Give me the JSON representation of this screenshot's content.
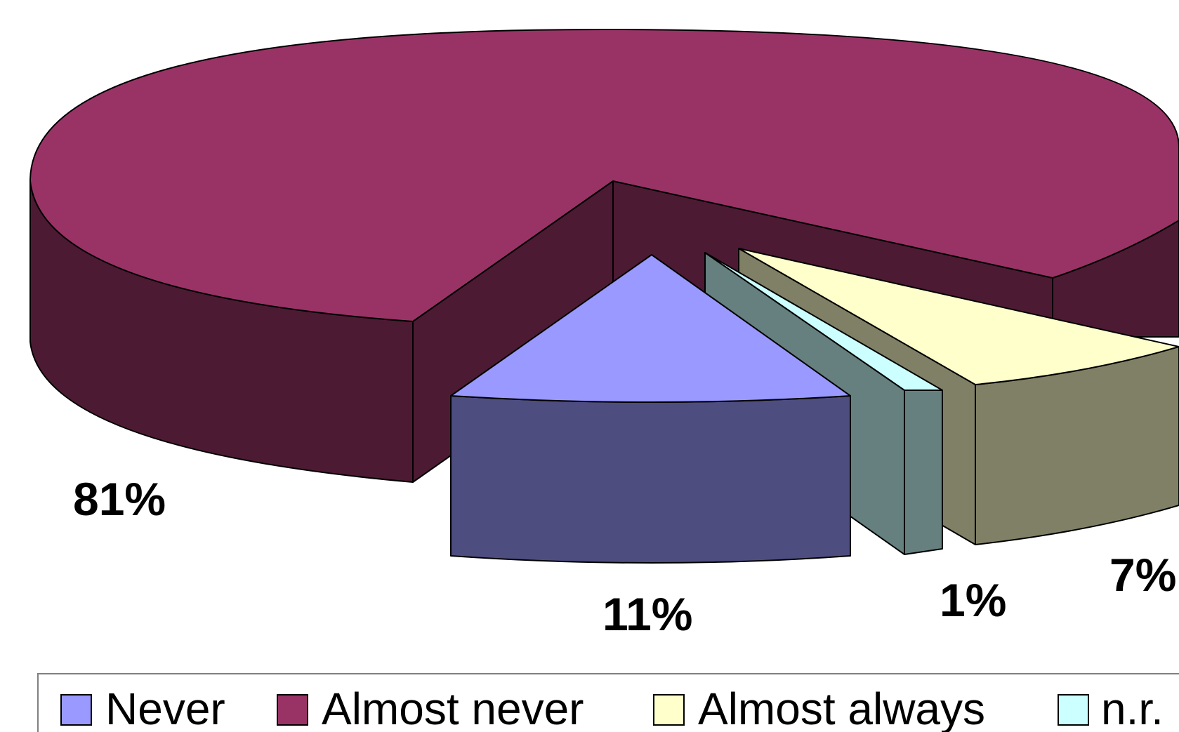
{
  "chart_data": {
    "type": "pie",
    "three_d": true,
    "exploded_slices": [
      "Never",
      "n.r.",
      "Almost always"
    ],
    "slices": [
      {
        "name": "Never",
        "value": 11,
        "label": "11%",
        "top_color": "#9999ff",
        "side_color": "#4d4d80"
      },
      {
        "name": "Almost never",
        "value": 81,
        "label": "81%",
        "top_color": "#993366",
        "side_color": "#4d1a33"
      },
      {
        "name": "Almost always",
        "value": 7,
        "label": "7%",
        "top_color": "#ffffcc",
        "side_color": "#808066"
      },
      {
        "name": "n.r.",
        "value": 1,
        "label": "1%",
        "top_color": "#ccffff",
        "side_color": "#668080"
      }
    ],
    "legend": {
      "placement": "bottom",
      "items": [
        {
          "label": "Never",
          "color": "#9999ff"
        },
        {
          "label": "Almost never",
          "color": "#993366"
        },
        {
          "label": "Almost always",
          "color": "#ffffcc"
        },
        {
          "label": "n.r.",
          "color": "#ccffff"
        }
      ]
    }
  }
}
